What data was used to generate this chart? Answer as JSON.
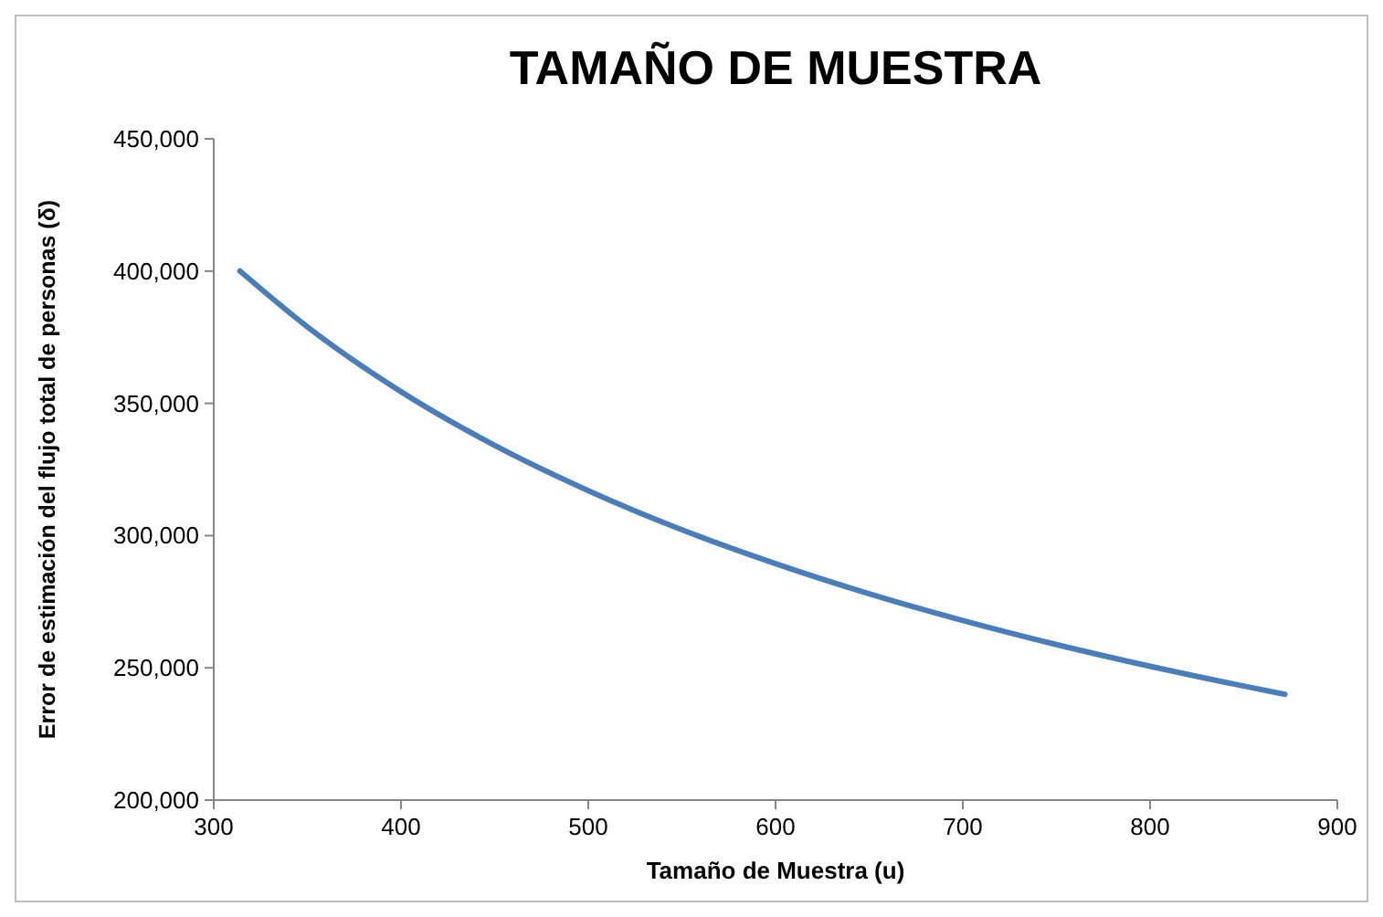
{
  "chart_data": {
    "type": "line",
    "title": "TAMAÑO DE MUESTRA",
    "xlabel": "Tamaño de Muestra (u)",
    "ylabel": "Error de estimación del flujo total de personas (δ)",
    "x": [
      314,
      350,
      400,
      450,
      500,
      550,
      600,
      650,
      700,
      750,
      800,
      850,
      872
    ],
    "series": [
      {
        "color": "#4a7ebb",
        "values": [
          400000,
          378900,
          354400,
          334100,
          317000,
          302200,
          289400,
          278000,
          267900,
          258800,
          250600,
          243100,
          240000
        ]
      }
    ],
    "xlim": [
      300,
      900
    ],
    "xticks": [
      300,
      400,
      500,
      600,
      700,
      800,
      900
    ],
    "ylim": [
      200000,
      450000
    ],
    "yticks": [
      {
        "value": 200000,
        "label": "200,000"
      },
      {
        "value": 250000,
        "label": "250,000"
      },
      {
        "value": 300000,
        "label": "300,000"
      },
      {
        "value": 350000,
        "label": "350,000"
      },
      {
        "value": 400000,
        "label": "400,000"
      },
      {
        "value": 450000,
        "label": "450,000"
      }
    ],
    "grid": false,
    "marker": "none",
    "line_style": "solid"
  }
}
